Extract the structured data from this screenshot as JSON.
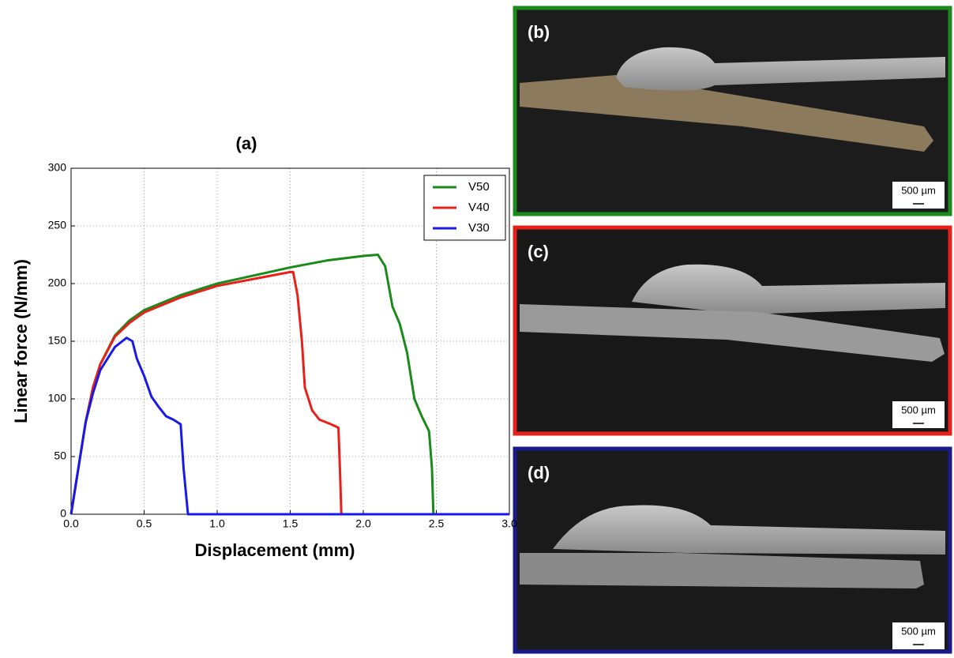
{
  "chart_data": {
    "type": "line",
    "title": "(a)",
    "x_label": "Displacement (mm)",
    "y_label": "Linear force (N/mm)",
    "xlim": [
      0,
      3.0
    ],
    "ylim": [
      0,
      300
    ],
    "xticks": [
      {
        "value": 0,
        "label": "0.0"
      },
      {
        "value": 0.5,
        "label": "0.5"
      },
      {
        "value": 1,
        "label": "1.0"
      },
      {
        "value": 1.5,
        "label": "1.5"
      },
      {
        "value": 2,
        "label": "2.0"
      },
      {
        "value": 2.5,
        "label": "2.5"
      },
      {
        "value": 3,
        "label": "3.0"
      }
    ],
    "yticks": [
      0,
      50,
      100,
      150,
      200,
      250,
      300
    ],
    "grid": true,
    "legend": "upper right",
    "series": [
      {
        "name": "V50",
        "color": "#1a8a1a",
        "x": [
          0,
          0.05,
          0.1,
          0.15,
          0.2,
          0.3,
          0.4,
          0.5,
          0.75,
          1.0,
          1.25,
          1.5,
          1.75,
          2.0,
          2.1,
          2.15,
          2.2,
          2.25,
          2.3,
          2.35,
          2.4,
          2.45,
          2.47,
          2.48,
          3.0
        ],
        "values": [
          0,
          40,
          80,
          110,
          130,
          155,
          168,
          177,
          190,
          200,
          207,
          214,
          220,
          224,
          225,
          215,
          180,
          165,
          140,
          100,
          85,
          72,
          40,
          0,
          0
        ]
      },
      {
        "name": "V40",
        "color": "#e8201a",
        "x": [
          0,
          0.05,
          0.1,
          0.15,
          0.2,
          0.3,
          0.4,
          0.5,
          0.75,
          1.0,
          1.25,
          1.5,
          1.52,
          1.55,
          1.58,
          1.6,
          1.65,
          1.7,
          1.78,
          1.83,
          1.84,
          1.85,
          3.0
        ],
        "values": [
          0,
          40,
          80,
          110,
          130,
          154,
          166,
          175,
          188,
          198,
          204,
          210,
          210,
          190,
          150,
          110,
          90,
          82,
          78,
          75,
          40,
          0,
          0
        ]
      },
      {
        "name": "V30",
        "color": "#1a1ae8",
        "x": [
          0,
          0.05,
          0.1,
          0.15,
          0.2,
          0.3,
          0.38,
          0.42,
          0.45,
          0.5,
          0.55,
          0.6,
          0.65,
          0.7,
          0.75,
          0.77,
          0.8,
          3.0
        ],
        "values": [
          0,
          40,
          80,
          105,
          125,
          145,
          153,
          150,
          135,
          120,
          102,
          93,
          85,
          82,
          78,
          40,
          0,
          0
        ]
      }
    ]
  },
  "panels": [
    {
      "label": "(b)",
      "scale_bar": "500 µm"
    },
    {
      "label": "(c)",
      "scale_bar": "500 µm"
    },
    {
      "label": "(d)",
      "scale_bar": "500 µm"
    }
  ]
}
